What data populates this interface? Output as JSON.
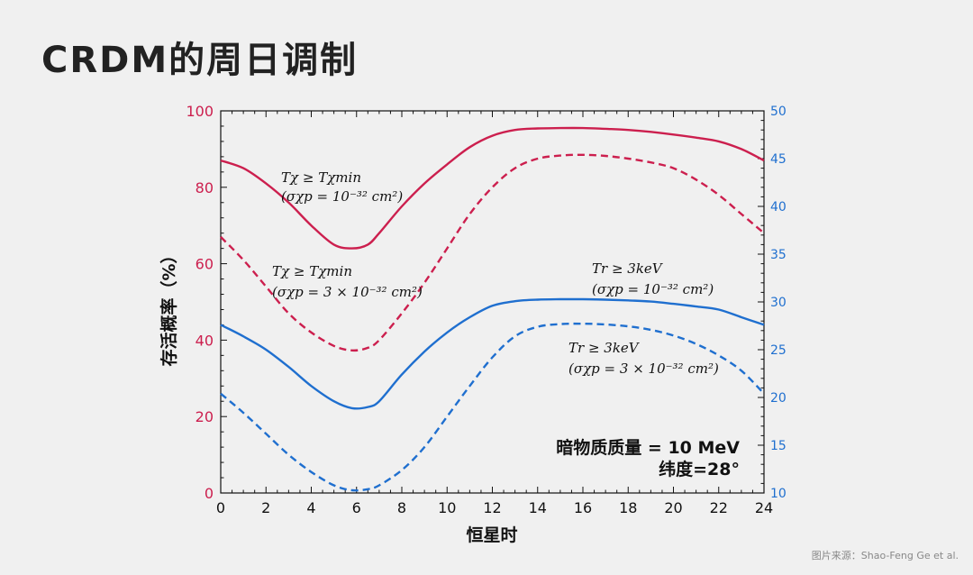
{
  "title": "CRDM的周日调制",
  "source": "图片来源：Shao-Feng Ge et al.",
  "colors": {
    "red": "#cc1f4e",
    "blue": "#1f6fcf"
  },
  "chart_data": {
    "type": "line",
    "xlabel": "恒星时",
    "ylabel": "存活概率（%）",
    "xlim": [
      0,
      24
    ],
    "ylim_left": [
      0,
      100
    ],
    "ylim_right": [
      10,
      50
    ],
    "xticks": [
      "0",
      "2",
      "4",
      "6",
      "8",
      "10",
      "12",
      "14",
      "16",
      "18",
      "20",
      "22",
      "24"
    ],
    "yticks_left": [
      "0",
      "20",
      "40",
      "60",
      "80",
      "100"
    ],
    "yticks_right": [
      "10",
      "15",
      "20",
      "25",
      "30",
      "35",
      "40",
      "45",
      "50"
    ],
    "series": [
      {
        "color": "#cc1f4e",
        "dash": false,
        "axis": "left",
        "x": [
          0,
          1,
          2,
          3,
          4,
          5,
          5.8,
          6.5,
          7,
          8,
          9,
          10,
          11,
          12,
          13,
          14,
          15,
          16,
          17,
          18,
          19,
          20,
          21,
          22,
          23,
          24
        ],
        "y": [
          87,
          85,
          81,
          76,
          70,
          65,
          64,
          65,
          68,
          75,
          81,
          86,
          90.5,
          93.5,
          95,
          95.4,
          95.5,
          95.5,
          95.3,
          95,
          94.5,
          93.8,
          93,
          92,
          90,
          87
        ]
      },
      {
        "color": "#cc1f4e",
        "dash": true,
        "axis": "left",
        "x": [
          0,
          1,
          2,
          3,
          4,
          5,
          5.8,
          6.5,
          7,
          8,
          9,
          10,
          11,
          12,
          13,
          14,
          15,
          16,
          17,
          18,
          19,
          20,
          21,
          22,
          23,
          24
        ],
        "y": [
          67,
          61,
          54,
          47,
          42,
          38.5,
          37.3,
          38,
          40,
          47,
          55,
          64,
          73,
          80,
          85,
          87.5,
          88.3,
          88.5,
          88.2,
          87.5,
          86.5,
          85,
          82,
          78,
          73,
          68
        ]
      },
      {
        "color": "#1f6fcf",
        "dash": false,
        "axis": "left",
        "x": [
          0,
          1,
          2,
          3,
          4,
          5,
          5.8,
          6.5,
          7,
          8,
          9,
          10,
          11,
          12,
          13,
          14,
          15,
          16,
          17,
          18,
          19,
          20,
          21,
          22,
          23,
          24
        ],
        "y": [
          44,
          41,
          37.5,
          33,
          28,
          24,
          22.2,
          22.5,
          24,
          31,
          37,
          42,
          46,
          49,
          50.2,
          50.6,
          50.7,
          50.7,
          50.6,
          50.4,
          50.1,
          49.5,
          48.8,
          48,
          46,
          44
        ]
      },
      {
        "color": "#1f6fcf",
        "dash": true,
        "axis": "left",
        "x": [
          0,
          1,
          2,
          3,
          4,
          5,
          5.8,
          6.5,
          7,
          8,
          9,
          10,
          11,
          12,
          13,
          14,
          15,
          16,
          17,
          18,
          19,
          20,
          21,
          22,
          23,
          24
        ],
        "y": [
          26,
          21,
          15.5,
          10,
          5.5,
          2,
          0.7,
          1,
          2,
          6,
          12,
          20,
          28,
          35.5,
          41,
          43.5,
          44.2,
          44.3,
          44.1,
          43.6,
          42.7,
          41.2,
          39,
          36,
          32,
          26
        ]
      }
    ],
    "annotations": [
      {
        "line1": "Tχ ≥ Tχmin",
        "line2": "(σχp = 10⁻³² cm²)"
      },
      {
        "line1": "Tχ ≥ Tχmin",
        "line2": "(σχp = 3 × 10⁻³² cm²)"
      },
      {
        "line1": "Tr ≥ 3keV",
        "line2": "(σχp = 10⁻³² cm²)"
      },
      {
        "line1": "Tr ≥ 3keV",
        "line2": "(σχp = 3 × 10⁻³² cm²)"
      }
    ],
    "note_line1": "暗物质质量 = 10 MeV",
    "note_line2": "纬度=28°"
  }
}
